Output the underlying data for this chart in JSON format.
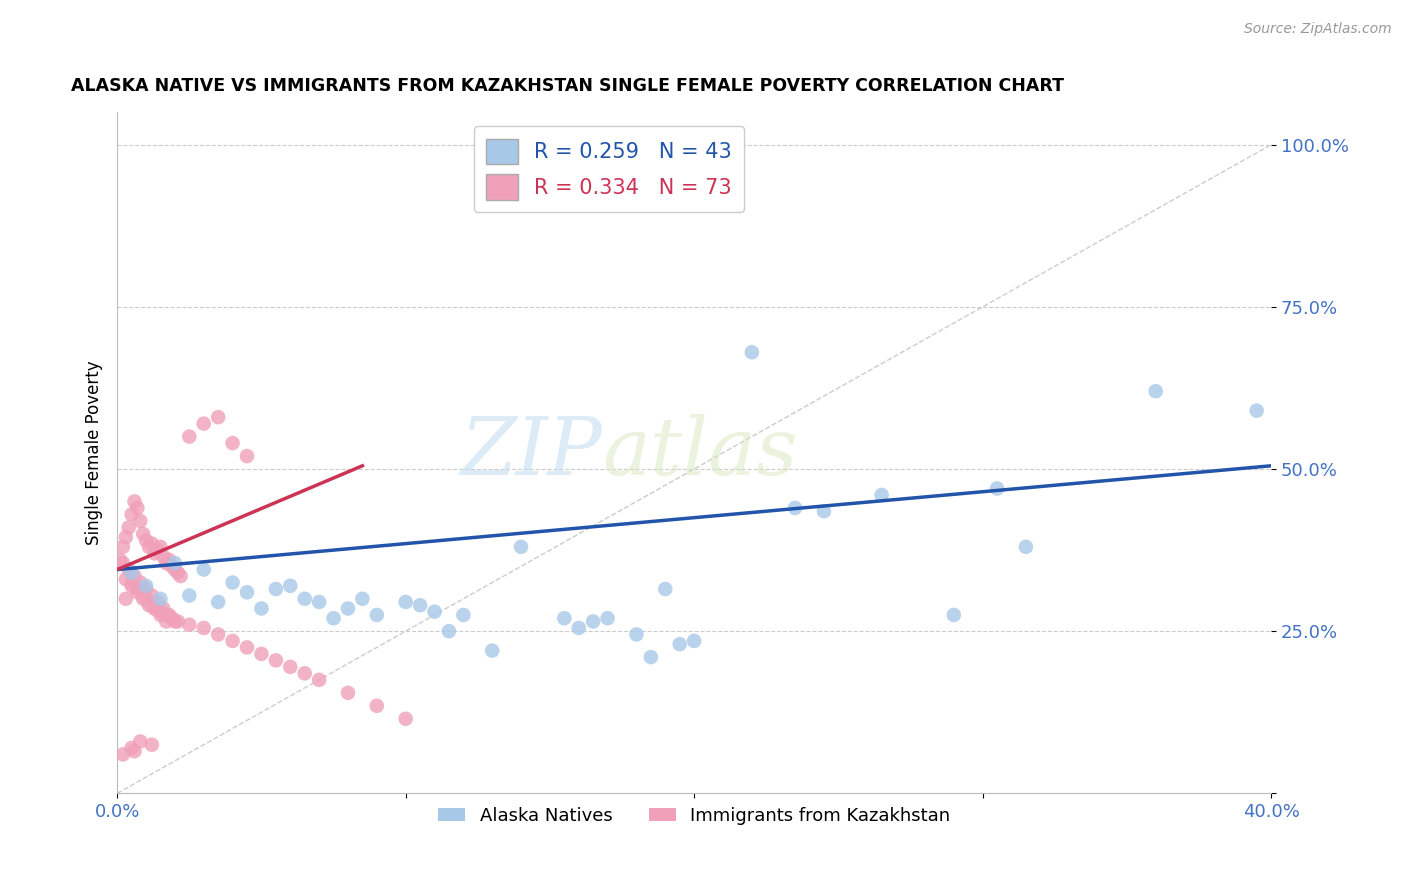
{
  "title": "ALASKA NATIVE VS IMMIGRANTS FROM KAZAKHSTAN SINGLE FEMALE POVERTY CORRELATION CHART",
  "source": "Source: ZipAtlas.com",
  "tick_color": "#4472c4",
  "ylabel": "Single Female Poverty",
  "xmin": 0.0,
  "xmax": 0.4,
  "ymin": 0.0,
  "ymax": 1.05,
  "yticks": [
    0.0,
    0.25,
    0.5,
    0.75,
    1.0
  ],
  "ytick_labels": [
    "",
    "25.0%",
    "50.0%",
    "75.0%",
    "100.0%"
  ],
  "xticks": [
    0.0,
    0.1,
    0.2,
    0.3,
    0.4
  ],
  "xtick_labels": [
    "0.0%",
    "",
    "",
    "",
    "40.0%"
  ],
  "blue_R": 0.259,
  "blue_N": 43,
  "pink_R": 0.334,
  "pink_N": 73,
  "blue_color": "#a8c8e8",
  "pink_color": "#f0a0b8",
  "blue_line_color": "#2255aa",
  "pink_line_color": "#cc3355",
  "dashed_line_color": "#cccccc",
  "watermark_zip": "ZIP",
  "watermark_atlas": "atlas",
  "blue_scatter_x": [
    0.005,
    0.01,
    0.015,
    0.02,
    0.025,
    0.03,
    0.035,
    0.04,
    0.045,
    0.05,
    0.055,
    0.06,
    0.065,
    0.07,
    0.075,
    0.08,
    0.085,
    0.09,
    0.1,
    0.105,
    0.11,
    0.115,
    0.12,
    0.13,
    0.14,
    0.155,
    0.16,
    0.165,
    0.17,
    0.18,
    0.185,
    0.19,
    0.195,
    0.2,
    0.22,
    0.235,
    0.245,
    0.265,
    0.29,
    0.305,
    0.315,
    0.36,
    0.395
  ],
  "blue_scatter_y": [
    0.34,
    0.32,
    0.3,
    0.355,
    0.305,
    0.345,
    0.295,
    0.325,
    0.31,
    0.285,
    0.315,
    0.32,
    0.3,
    0.295,
    0.27,
    0.285,
    0.3,
    0.275,
    0.295,
    0.29,
    0.28,
    0.25,
    0.275,
    0.22,
    0.38,
    0.27,
    0.255,
    0.265,
    0.27,
    0.245,
    0.21,
    0.315,
    0.23,
    0.235,
    0.68,
    0.44,
    0.435,
    0.46,
    0.275,
    0.47,
    0.38,
    0.62,
    0.59
  ],
  "pink_scatter_x": [
    0.001,
    0.002,
    0.003,
    0.004,
    0.005,
    0.006,
    0.007,
    0.008,
    0.009,
    0.01,
    0.011,
    0.012,
    0.013,
    0.014,
    0.015,
    0.016,
    0.017,
    0.018,
    0.019,
    0.02,
    0.021,
    0.022,
    0.003,
    0.005,
    0.007,
    0.009,
    0.011,
    0.013,
    0.015,
    0.017,
    0.019,
    0.021,
    0.003,
    0.005,
    0.007,
    0.009,
    0.011,
    0.013,
    0.015,
    0.017,
    0.002,
    0.004,
    0.006,
    0.008,
    0.01,
    0.012,
    0.014,
    0.016,
    0.018,
    0.02,
    0.025,
    0.03,
    0.035,
    0.04,
    0.045,
    0.05,
    0.055,
    0.06,
    0.065,
    0.07,
    0.08,
    0.09,
    0.1,
    0.025,
    0.03,
    0.035,
    0.04,
    0.045,
    0.002,
    0.005,
    0.008,
    0.012,
    0.006
  ],
  "pink_scatter_y": [
    0.36,
    0.38,
    0.395,
    0.41,
    0.43,
    0.45,
    0.44,
    0.42,
    0.4,
    0.39,
    0.38,
    0.385,
    0.37,
    0.375,
    0.38,
    0.365,
    0.355,
    0.36,
    0.35,
    0.345,
    0.34,
    0.335,
    0.3,
    0.32,
    0.31,
    0.3,
    0.29,
    0.285,
    0.28,
    0.275,
    0.27,
    0.265,
    0.33,
    0.325,
    0.315,
    0.305,
    0.295,
    0.285,
    0.275,
    0.265,
    0.355,
    0.345,
    0.335,
    0.325,
    0.315,
    0.305,
    0.295,
    0.285,
    0.275,
    0.265,
    0.26,
    0.255,
    0.245,
    0.235,
    0.225,
    0.215,
    0.205,
    0.195,
    0.185,
    0.175,
    0.155,
    0.135,
    0.115,
    0.55,
    0.57,
    0.58,
    0.54,
    0.52,
    0.06,
    0.07,
    0.08,
    0.075,
    0.065
  ],
  "blue_trend_x": [
    0.0,
    0.4
  ],
  "blue_trend_y": [
    0.345,
    0.505
  ],
  "pink_trend_x": [
    0.0,
    0.085
  ],
  "pink_trend_y": [
    0.345,
    0.505
  ],
  "diag_line_x": [
    0.0,
    0.4
  ],
  "diag_line_y": [
    0.0,
    1.0
  ]
}
